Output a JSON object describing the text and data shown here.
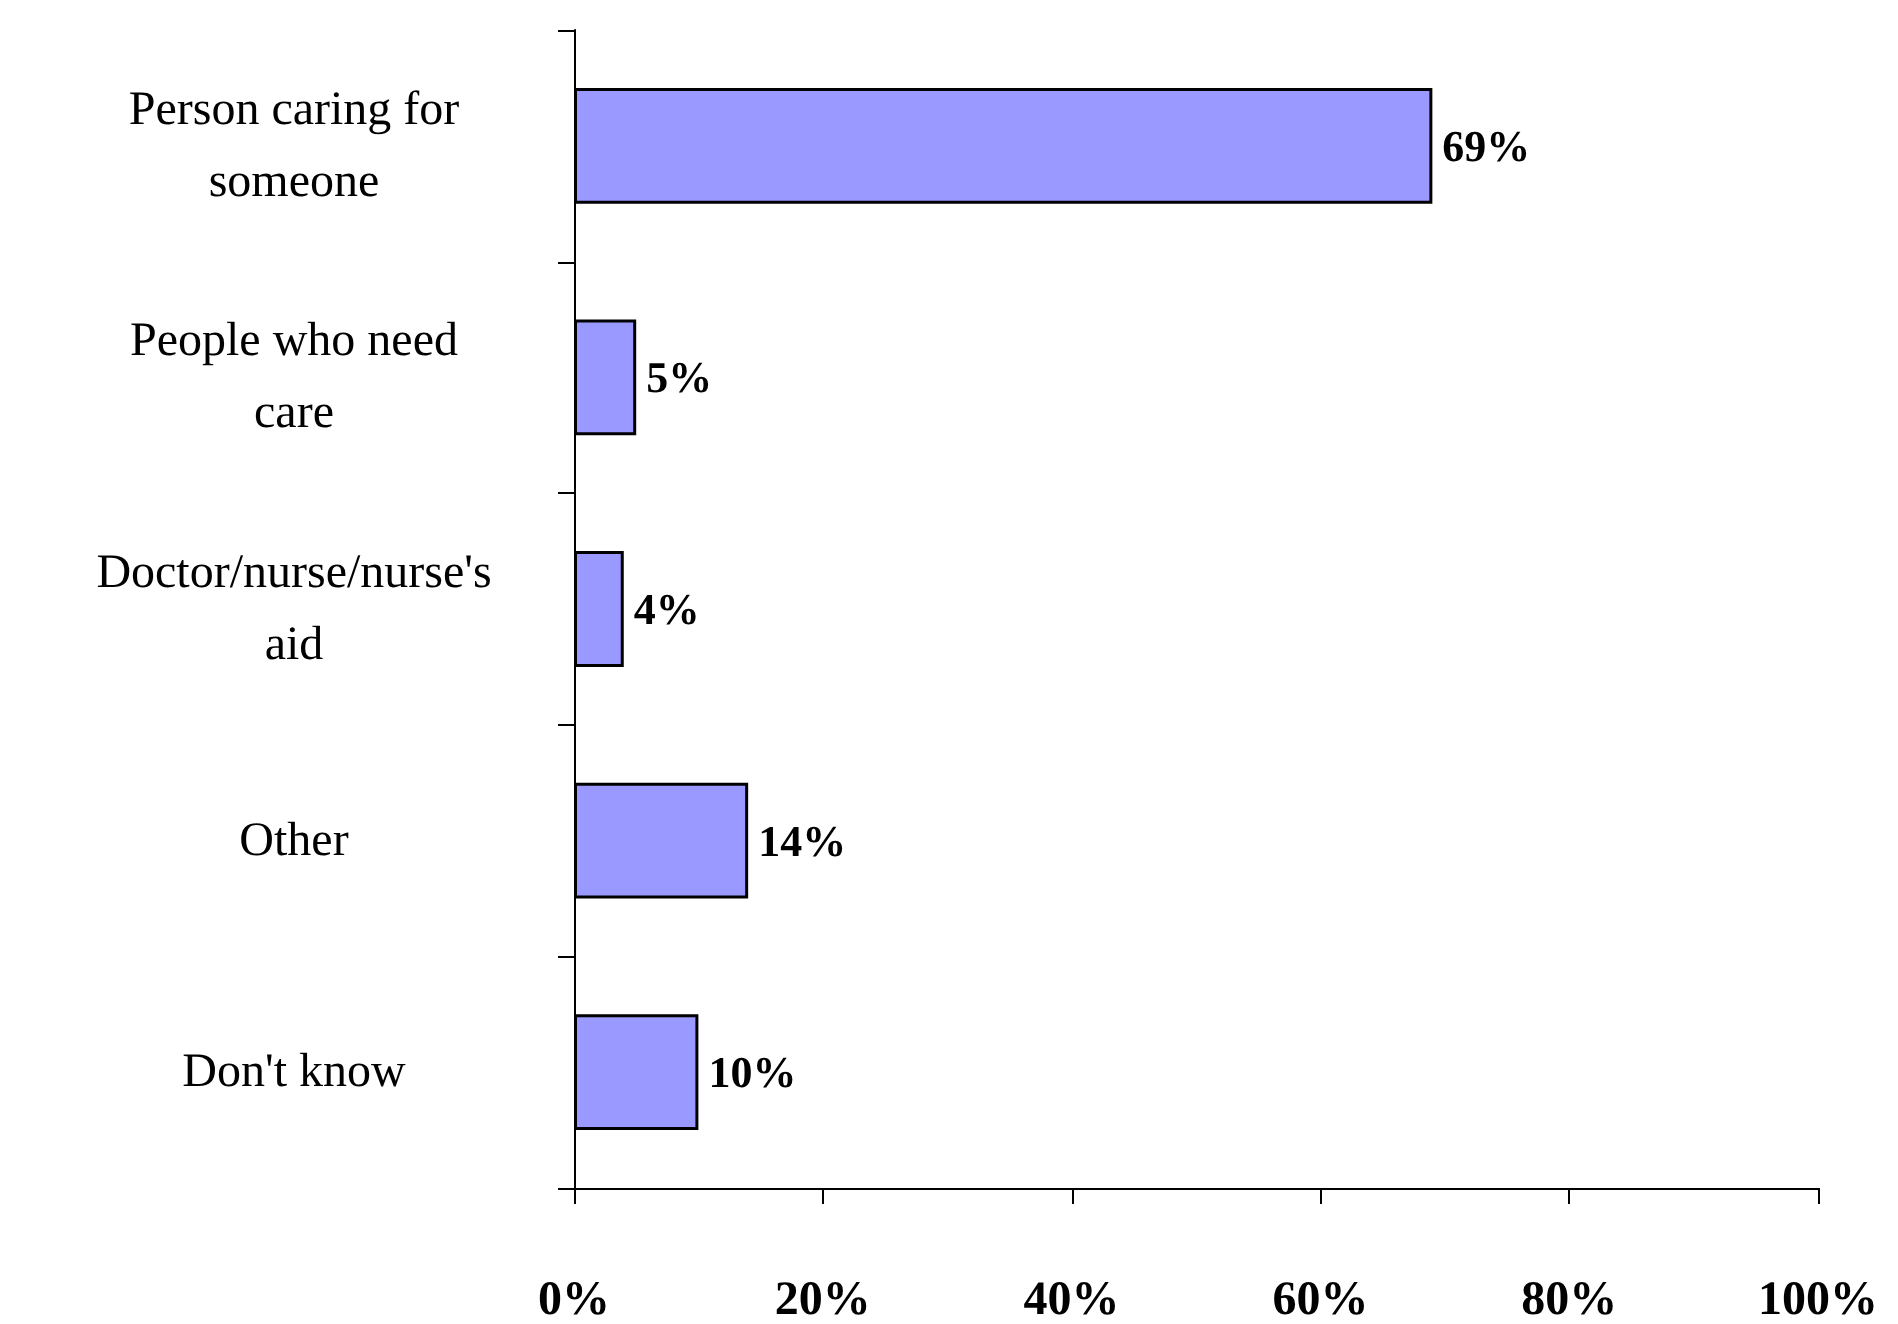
{
  "chart_data": {
    "type": "bar",
    "orientation": "horizontal",
    "categories": [
      "Person caring for someone",
      "People who need care",
      "Doctor/nurse/nurse's aid",
      "Other",
      "Don't know"
    ],
    "values": [
      69,
      5,
      4,
      14,
      10
    ],
    "value_labels": [
      "69%",
      "5%",
      "4%",
      "14%",
      "10%"
    ],
    "color": "#9999ff",
    "xlim": [
      0,
      100
    ],
    "xticks": [
      {
        "value": 0,
        "label": "0%"
      },
      {
        "value": 20,
        "label": "20%"
      },
      {
        "value": 40,
        "label": "40%"
      },
      {
        "value": 60,
        "label": "60%"
      },
      {
        "value": 80,
        "label": "80%"
      },
      {
        "value": 100,
        "label": "100%"
      }
    ],
    "grid": false
  }
}
